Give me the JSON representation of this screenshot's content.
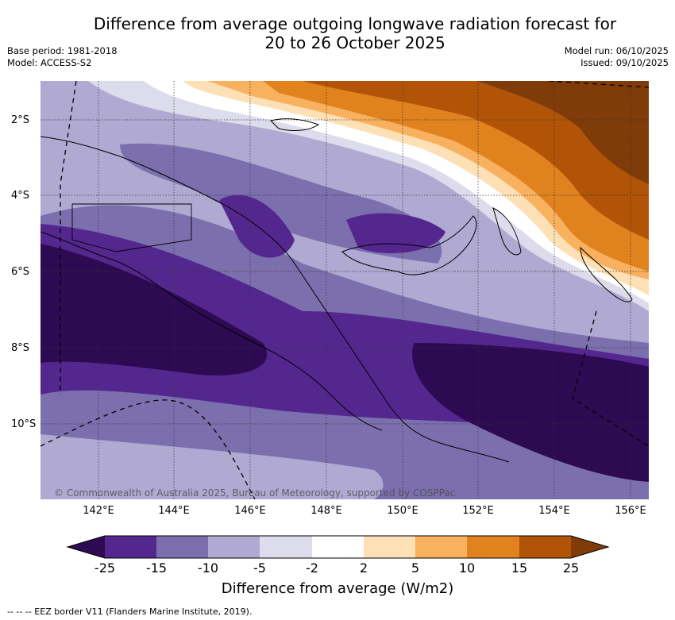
{
  "title_line1": "Difference from average outgoing longwave radiation forecast for",
  "title_line2": "20 to 26 October 2025",
  "base_period": "Base period: 1981-2018",
  "model": "Model: ACCESS-S2",
  "model_run": "Model run: 06/10/2025",
  "issued": "Issued: 09/10/2025",
  "latitudes": [
    "2°S",
    "4°S",
    "6°S",
    "8°S",
    "10°S"
  ],
  "longitudes": [
    "142°E",
    "144°E",
    "146°E",
    "148°E",
    "150°E",
    "152°E",
    "154°E",
    "156°E"
  ],
  "copyright": "© Commonwealth of Australia 2025, Bureau of Meteorology, supported by COSPPac",
  "colorbar": {
    "title": "Difference from average (W/m2)",
    "ticks": [
      "-25",
      "-15",
      "-10",
      "-5",
      "-2",
      "2",
      "5",
      "10",
      "15",
      "25"
    ],
    "colors": [
      "#2d0a52",
      "#54278f",
      "#7b6fae",
      "#b0a9d2",
      "#dddcec",
      "#ffffff",
      "#fde0b5",
      "#f8b15e",
      "#e0821e",
      "#b15408",
      "#7f3b08"
    ]
  },
  "eez_note": "-- -- -- EEZ border V11 (Flanders Marine Institute, 2019)."
}
